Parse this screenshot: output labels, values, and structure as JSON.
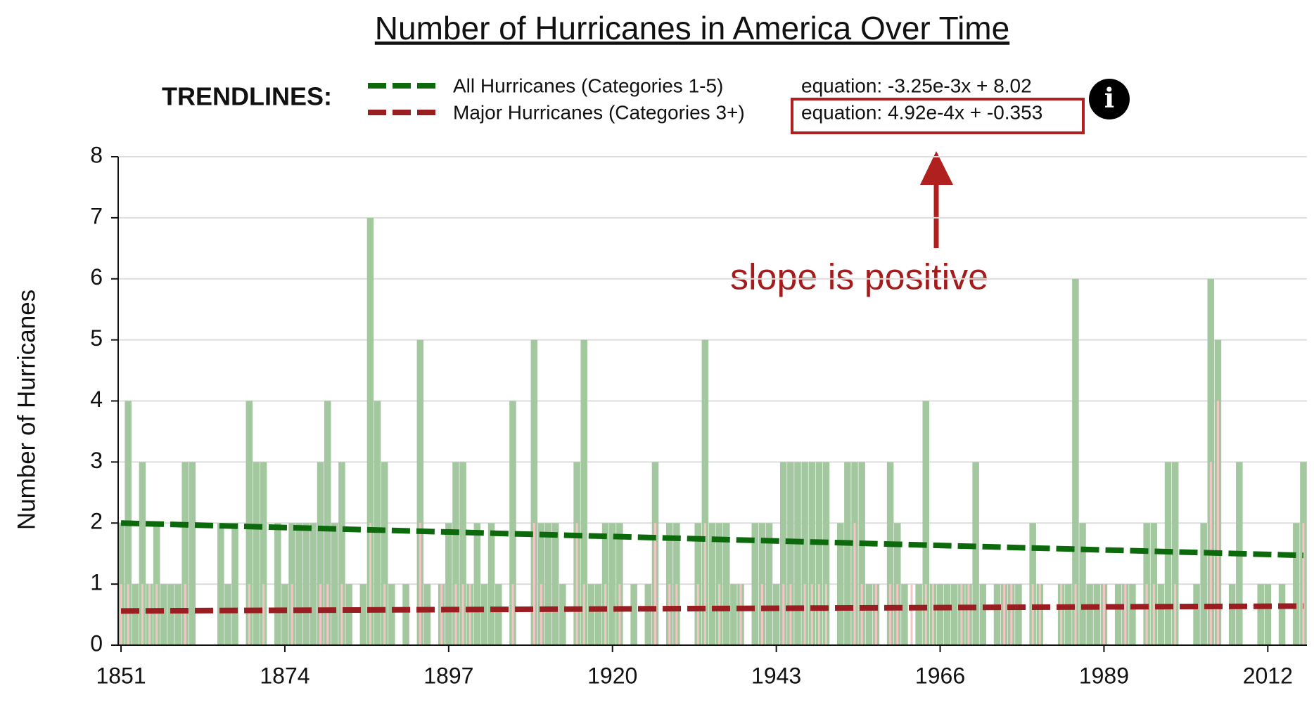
{
  "chart_data": {
    "type": "bar",
    "title": "Number of Hurricanes in America Over Time",
    "ylabel": "Number of Hurricanes",
    "legend_title": "TRENDLINES:",
    "annotation": "slope is positive",
    "x": [
      1851,
      1852,
      1853,
      1854,
      1855,
      1856,
      1857,
      1858,
      1859,
      1860,
      1861,
      1862,
      1863,
      1864,
      1865,
      1866,
      1867,
      1868,
      1869,
      1870,
      1871,
      1872,
      1873,
      1874,
      1875,
      1876,
      1877,
      1878,
      1879,
      1880,
      1881,
      1882,
      1883,
      1884,
      1885,
      1886,
      1887,
      1888,
      1889,
      1890,
      1891,
      1892,
      1893,
      1894,
      1895,
      1896,
      1897,
      1898,
      1899,
      1900,
      1901,
      1902,
      1903,
      1904,
      1905,
      1906,
      1907,
      1908,
      1909,
      1910,
      1911,
      1912,
      1913,
      1914,
      1915,
      1916,
      1917,
      1918,
      1919,
      1920,
      1921,
      1922,
      1923,
      1924,
      1925,
      1926,
      1927,
      1928,
      1929,
      1930,
      1931,
      1932,
      1933,
      1934,
      1935,
      1936,
      1937,
      1938,
      1939,
      1940,
      1941,
      1942,
      1943,
      1944,
      1945,
      1946,
      1947,
      1948,
      1949,
      1950,
      1951,
      1952,
      1953,
      1954,
      1955,
      1956,
      1957,
      1958,
      1959,
      1960,
      1961,
      1962,
      1963,
      1964,
      1965,
      1966,
      1967,
      1968,
      1969,
      1970,
      1971,
      1972,
      1973,
      1974,
      1975,
      1976,
      1977,
      1978,
      1979,
      1980,
      1981,
      1982,
      1983,
      1984,
      1985,
      1986,
      1987,
      1988,
      1989,
      1990,
      1991,
      1992,
      1993,
      1994,
      1995,
      1996,
      1997,
      1998,
      1999,
      2000,
      2001,
      2002,
      2003,
      2004,
      2005,
      2006,
      2007,
      2008,
      2009,
      2010,
      2011,
      2012,
      2013,
      2014,
      2015,
      2016,
      2017
    ],
    "series": [
      {
        "name": "All Hurricanes",
        "color": "#a3c8a0",
        "values": [
          2,
          4,
          1,
          3,
          1,
          2,
          1,
          1,
          1,
          3,
          3,
          0,
          0,
          0,
          2,
          1,
          2,
          0,
          4,
          3,
          3,
          0,
          2,
          1,
          2,
          2,
          2,
          2,
          3,
          4,
          2,
          3,
          1,
          0,
          1,
          7,
          4,
          3,
          1,
          0,
          1,
          0,
          5,
          1,
          0,
          1,
          2,
          3,
          3,
          1,
          2,
          1,
          2,
          1,
          0,
          4,
          0,
          0,
          5,
          2,
          2,
          2,
          1,
          0,
          3,
          5,
          1,
          1,
          2,
          2,
          2,
          0,
          1,
          0,
          1,
          3,
          0,
          2,
          2,
          0,
          0,
          2,
          5,
          2,
          2,
          2,
          1,
          1,
          0,
          2,
          2,
          2,
          1,
          3,
          3,
          3,
          3,
          3,
          3,
          3,
          0,
          2,
          3,
          3,
          3,
          1,
          1,
          0,
          3,
          2,
          1,
          0,
          1,
          4,
          1,
          1,
          1,
          1,
          1,
          1,
          3,
          1,
          0,
          1,
          1,
          1,
          1,
          0,
          2,
          1,
          0,
          0,
          1,
          1,
          6,
          2,
          1,
          1,
          1,
          0,
          1,
          1,
          1,
          0,
          2,
          2,
          1,
          3,
          3,
          0,
          0,
          1,
          2,
          6,
          5,
          0,
          1,
          3,
          0,
          0,
          1,
          1,
          0,
          1,
          0,
          2,
          3
        ]
      },
      {
        "name": "Major Hurricanes",
        "color": "#f5c4c4",
        "values": [
          1,
          1,
          0,
          1,
          1,
          1,
          0,
          0,
          0,
          1,
          0,
          0,
          0,
          0,
          0,
          0,
          0,
          0,
          1,
          0,
          1,
          0,
          0,
          0,
          1,
          0,
          0,
          0,
          1,
          1,
          0,
          1,
          0,
          0,
          0,
          2,
          0,
          1,
          0,
          0,
          0,
          0,
          2,
          0,
          0,
          1,
          0,
          1,
          1,
          1,
          0,
          0,
          0,
          0,
          0,
          1,
          0,
          0,
          2,
          1,
          0,
          0,
          0,
          0,
          2,
          1,
          0,
          0,
          1,
          0,
          1,
          0,
          0,
          0,
          0,
          2,
          0,
          1,
          1,
          0,
          0,
          1,
          2,
          0,
          1,
          0,
          0,
          1,
          0,
          0,
          1,
          0,
          0,
          1,
          1,
          0,
          1,
          1,
          1,
          1,
          0,
          0,
          0,
          2,
          1,
          0,
          1,
          0,
          1,
          1,
          0,
          1,
          0,
          1,
          1,
          0,
          0,
          0,
          1,
          1,
          0,
          0,
          0,
          0,
          1,
          1,
          0,
          0,
          1,
          1,
          0,
          0,
          1,
          0,
          1,
          0,
          0,
          0,
          1,
          0,
          0,
          1,
          0,
          0,
          1,
          1,
          0,
          0,
          1,
          0,
          0,
          0,
          0,
          3,
          4,
          0,
          0,
          0,
          0,
          0,
          0,
          0,
          0,
          0,
          0,
          0,
          2
        ]
      }
    ],
    "trendlines": [
      {
        "name": "All Hurricanes (Categories 1-5)",
        "color": "#0c6a0c",
        "equation": "equation: -3.25e-3x + 8.02",
        "x": [
          1851,
          2017
        ],
        "values": [
          2.0,
          1.47
        ]
      },
      {
        "name": "Major Hurricanes (Categories 3+)",
        "color": "#9a1d22",
        "equation": "equation: 4.92e-4x + -0.353",
        "x": [
          1851,
          2017
        ],
        "values": [
          0.56,
          0.64
        ]
      }
    ],
    "xlim": [
      1850.6,
      2017.5
    ],
    "xticks": [
      1851,
      1874,
      1897,
      1920,
      1943,
      1966,
      1989,
      2012
    ],
    "ylim": [
      0,
      8
    ],
    "yticks": [
      0,
      1,
      2,
      3,
      4,
      5,
      6,
      7,
      8
    ],
    "grid": true
  }
}
